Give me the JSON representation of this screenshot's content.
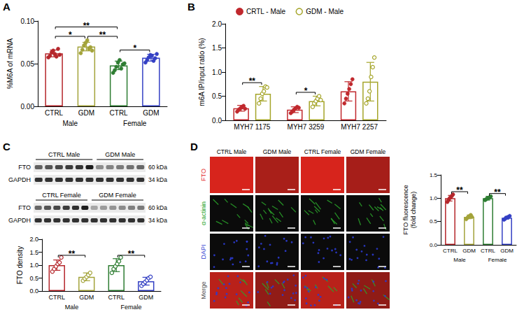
{
  "chart_data": [
    {
      "type": "bar",
      "title": "A",
      "ylabel": "%M6A of mRNA",
      "categories": [
        "CTRL",
        "GDM",
        "CTRL",
        "GDM"
      ],
      "groups": [
        "Male",
        "Female"
      ],
      "colors": [
        "#b5262b",
        "#a3a33a",
        "#2e7d32",
        "#3440c4"
      ],
      "marker": "circle",
      "values": [
        0.062,
        0.07,
        0.048,
        0.057
      ],
      "errors": [
        0.004,
        0.005,
        0.005,
        0.004
      ],
      "points": [
        [
          0.058,
          0.06,
          0.064,
          0.066,
          0.062,
          0.059,
          0.068,
          0.061
        ],
        [
          0.063,
          0.067,
          0.072,
          0.075,
          0.078,
          0.068,
          0.07,
          0.066
        ],
        [
          0.04,
          0.043,
          0.047,
          0.052,
          0.055,
          0.045,
          0.05,
          0.051
        ],
        [
          0.052,
          0.055,
          0.058,
          0.061,
          0.06,
          0.054,
          0.057,
          0.062
        ]
      ],
      "ylim": [
        0,
        0.1
      ],
      "yticks": [
        {
          "value": 0,
          "label": "0.00"
        },
        0.05,
        {
          "value": 0.1,
          "label": "0.10"
        }
      ],
      "significance": [
        {
          "from": 0,
          "to": 1,
          "label": "*"
        },
        {
          "from": 1,
          "to": 2,
          "label": "**"
        },
        {
          "from": 2,
          "to": 3,
          "label": "*"
        },
        {
          "from": 0,
          "to": 2,
          "label": "**"
        }
      ]
    },
    {
      "type": "bar",
      "title": "B",
      "ylabel": "m6A IP/input ratio (%)",
      "categories": [
        "MYH7 1175",
        "MYH7 3259",
        "MYH7 2257"
      ],
      "legend": "top",
      "series": [
        {
          "name": "CRTL - Male",
          "color": "#c0282d",
          "marker": "circle",
          "values": [
            0.25,
            0.22,
            0.6
          ],
          "errors": [
            0.06,
            0.06,
            0.2
          ],
          "points": [
            [
              0.18,
              0.22,
              0.25,
              0.28,
              0.3,
              0.24
            ],
            [
              0.15,
              0.18,
              0.22,
              0.25,
              0.28,
              0.26
            ],
            [
              0.35,
              0.45,
              0.55,
              0.65,
              0.75,
              0.85
            ]
          ]
        },
        {
          "name": "GDM - Male",
          "color": "#a5a52a",
          "marker": "circle-open",
          "values": [
            0.55,
            0.4,
            0.8
          ],
          "errors": [
            0.15,
            0.1,
            0.4
          ],
          "points": [
            [
              0.35,
              0.45,
              0.55,
              0.6,
              0.7,
              0.68
            ],
            [
              0.28,
              0.35,
              0.4,
              0.45,
              0.5,
              0.42
            ],
            [
              0.35,
              0.45,
              0.6,
              0.9,
              1.1,
              1.3
            ]
          ]
        }
      ],
      "ylim": [
        0,
        2
      ],
      "yticks": [
        {
          "value": 0,
          "label": "0.0"
        },
        0.5,
        {
          "value": 1,
          "label": "1.0"
        },
        1.5,
        {
          "value": 2,
          "label": "2.0"
        }
      ],
      "significance": [
        {
          "category": 0,
          "label": "**"
        },
        {
          "category": 1,
          "label": "*"
        }
      ]
    },
    {
      "type": "bar",
      "title": "C",
      "ylabel": "FTO density",
      "categories": [
        "CTRL",
        "GDM",
        "CTRL",
        "GDM"
      ],
      "groups": [
        "Male",
        "Female"
      ],
      "colors": [
        "#b5262b",
        "#a3a33a",
        "#2e7d32",
        "#3440c4"
      ],
      "marker": "circle-open",
      "values": [
        1.0,
        0.55,
        1.0,
        0.38
      ],
      "errors": [
        0.2,
        0.15,
        0.25,
        0.15
      ],
      "points": [
        [
          0.75,
          0.85,
          0.95,
          1.05,
          1.1,
          1.3
        ],
        [
          0.4,
          0.48,
          0.55,
          0.62,
          0.7
        ],
        [
          0.7,
          0.85,
          0.95,
          1.05,
          1.15,
          1.3
        ],
        [
          0.2,
          0.28,
          0.35,
          0.42,
          0.5,
          0.55
        ]
      ],
      "ylim": [
        0,
        2
      ],
      "yticks": [
        {
          "value": 0,
          "label": "0.0"
        },
        0.5,
        {
          "value": 1,
          "label": "1.0"
        },
        1.5,
        {
          "value": 2,
          "label": "2.0"
        }
      ],
      "significance": [
        {
          "from": 0,
          "to": 1,
          "label": "**"
        },
        {
          "from": 2,
          "to": 3,
          "label": "**"
        }
      ]
    },
    {
      "type": "bar",
      "title": "D",
      "ylabel": "FTO fluorescence (fold change)",
      "categories": [
        "CTRL",
        "GDM",
        "CTRL",
        "GDM"
      ],
      "groups": [
        "Male",
        "Female"
      ],
      "colors": [
        "#b5262b",
        "#a3a33a",
        "#2e7d32",
        "#3440c4"
      ],
      "marker": "circle",
      "values": [
        1.0,
        0.6,
        1.0,
        0.58
      ],
      "errors": [
        0.06,
        0.04,
        0.04,
        0.03
      ],
      "points": [
        [
          0.92,
          0.96,
          1.0,
          1.02,
          1.05,
          1.08
        ],
        [
          0.55,
          0.58,
          0.6,
          0.62,
          0.64,
          0.6
        ],
        [
          0.96,
          0.98,
          1.0,
          1.0,
          1.02,
          1.04
        ],
        [
          0.54,
          0.56,
          0.58,
          0.59,
          0.6,
          0.62
        ]
      ],
      "ylim": [
        0,
        1.5
      ],
      "yticks": [
        {
          "value": 0,
          "label": "0.0"
        },
        0.5,
        {
          "value": 1,
          "label": "1.0"
        },
        1.5
      ],
      "significance": [
        {
          "from": 0,
          "to": 1,
          "label": "**"
        },
        {
          "from": 2,
          "to": 3,
          "label": "**"
        }
      ]
    }
  ],
  "blots": [
    {
      "groups": [
        "CTRL Male",
        "GDM Male"
      ],
      "rows": [
        {
          "label": "FTO",
          "kda": "60 kDa"
        },
        {
          "label": "GAPDH",
          "kda": "34 kDa"
        }
      ]
    },
    {
      "groups": [
        "CTRL Female",
        "GDM Female"
      ],
      "rows": [
        {
          "label": "FTO",
          "kda": "60 kDa"
        },
        {
          "label": "GAPDH",
          "kda": "34 kDa"
        }
      ]
    }
  ],
  "images": {
    "columns": [
      "CTRL Male",
      "GDM Male",
      "CTRL Female",
      "GDM Female"
    ],
    "rows": [
      {
        "label": "FTO",
        "color": "#e3261e"
      },
      {
        "label": "α-actinin",
        "color": "#2aa52a"
      },
      {
        "label": "DAPI",
        "color": "#2b3bd0"
      },
      {
        "label": "Merge",
        "color": "#555555"
      }
    ]
  }
}
